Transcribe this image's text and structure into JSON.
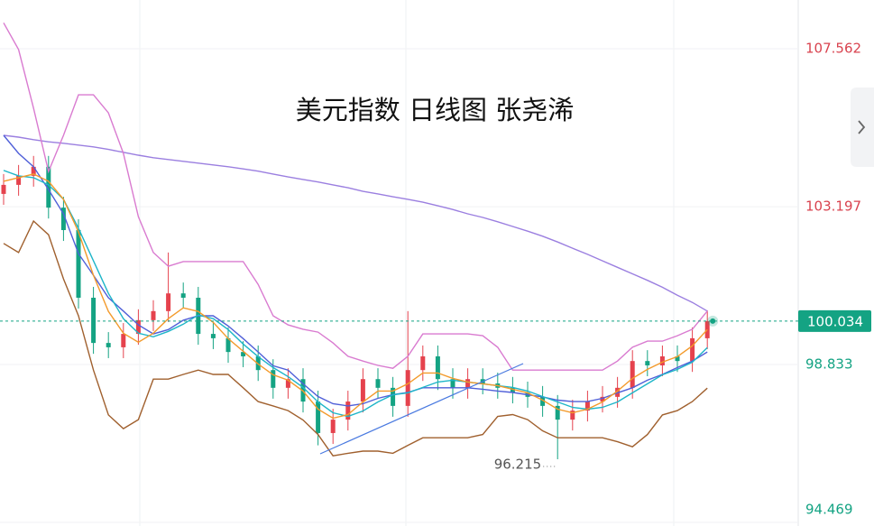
{
  "chart_data": {
    "type": "candlestick",
    "title": "美元指数 日线图 张尧浠",
    "open": [
      103.55,
      103.8,
      104.05,
      104.3,
      103.17,
      102.55,
      100.68,
      99.43,
      99.31,
      99.68,
      100.06,
      100.31,
      100.8,
      100.68,
      99.68,
      99.56,
      99.18,
      99.06,
      98.68,
      98.19,
      98.43,
      97.81,
      96.94,
      97.31,
      97.81,
      98.43,
      98.19,
      97.69,
      98.68,
      99.06,
      98.43,
      98.19,
      98.43,
      98.31,
      98.19,
      98.06,
      97.94,
      97.69,
      97.31,
      97.56,
      97.81,
      97.94,
      98.19,
      98.93,
      98.81,
      99.06,
      98.93,
      99.56
    ],
    "high": [
      104.1,
      104.35,
      104.6,
      104.6,
      103.47,
      102.85,
      100.98,
      99.73,
      99.98,
      100.36,
      100.61,
      101.93,
      101.1,
      100.98,
      99.98,
      99.86,
      99.48,
      99.36,
      98.98,
      98.73,
      98.73,
      98.11,
      97.61,
      98.11,
      98.73,
      98.73,
      98.49,
      100.31,
      99.36,
      99.36,
      98.73,
      98.73,
      98.73,
      98.61,
      98.49,
      98.36,
      98.24,
      97.99,
      97.86,
      98.11,
      98.24,
      98.49,
      99.23,
      99.23,
      99.36,
      99.36,
      99.86,
      100.33
    ],
    "low": [
      103.25,
      103.5,
      103.75,
      102.87,
      102.25,
      100.38,
      99.13,
      99.01,
      99.01,
      99.38,
      99.76,
      100.01,
      100.38,
      99.38,
      99.26,
      98.88,
      98.76,
      98.38,
      97.89,
      97.89,
      97.51,
      96.6,
      96.64,
      97.01,
      97.51,
      97.89,
      97.39,
      97.39,
      98.38,
      98.13,
      97.89,
      97.89,
      98.01,
      97.89,
      97.76,
      97.64,
      97.39,
      96.215,
      97.01,
      97.26,
      97.51,
      97.64,
      97.89,
      98.51,
      98.51,
      98.63,
      98.63,
      99.26
    ],
    "close": [
      103.8,
      104.05,
      104.3,
      103.17,
      102.55,
      100.68,
      99.43,
      99.31,
      99.68,
      100.06,
      100.31,
      100.8,
      100.68,
      99.68,
      99.56,
      99.18,
      99.06,
      98.68,
      98.19,
      98.43,
      97.81,
      96.94,
      97.31,
      97.81,
      98.43,
      98.19,
      97.69,
      98.68,
      99.06,
      98.43,
      98.19,
      98.43,
      98.31,
      98.19,
      98.06,
      97.94,
      97.69,
      97.31,
      97.56,
      97.81,
      97.94,
      98.19,
      98.93,
      98.81,
      99.06,
      98.93,
      99.56,
      100.034
    ],
    "up_color": "#e5424d",
    "down_color": "#14a383",
    "lines": [
      {
        "color": "#9b7fe0",
        "values": [
          105.17,
          105.12,
          105.05,
          104.99,
          104.95,
          104.9,
          104.85,
          104.78,
          104.7,
          104.62,
          104.55,
          104.5,
          104.45,
          104.4,
          104.35,
          104.3,
          104.24,
          104.18,
          104.1,
          104.02,
          103.95,
          103.88,
          103.8,
          103.72,
          103.62,
          103.55,
          103.47,
          103.4,
          103.32,
          103.22,
          103.12,
          103.0,
          102.9,
          102.78,
          102.65,
          102.52,
          102.38,
          102.22,
          102.05,
          101.88,
          101.7,
          101.52,
          101.34,
          101.16,
          100.97,
          100.75,
          100.55,
          100.31
        ]
      },
      {
        "color": "#d97bd0",
        "values": [
          108.28,
          107.54,
          105.92,
          104.17,
          105.17,
          106.29,
          106.29,
          105.79,
          104.67,
          102.92,
          101.93,
          101.55,
          101.68,
          101.68,
          101.68,
          101.68,
          101.68,
          101.05,
          100.18,
          99.93,
          99.81,
          99.73,
          99.43,
          99.06,
          98.93,
          98.81,
          98.73,
          99.06,
          99.68,
          99.68,
          99.68,
          99.68,
          99.63,
          99.31,
          98.68,
          98.68,
          98.68,
          98.68,
          98.68,
          98.68,
          98.68,
          98.93,
          99.31,
          99.48,
          99.48,
          99.63,
          99.81,
          100.31
        ]
      },
      {
        "color": "#a0602e",
        "values": [
          102.18,
          101.93,
          102.8,
          102.42,
          101.2,
          100.18,
          98.68,
          97.44,
          97.06,
          97.31,
          98.43,
          98.43,
          98.56,
          98.68,
          98.56,
          98.56,
          98.19,
          97.81,
          97.69,
          97.56,
          97.3,
          96.9,
          96.31,
          96.38,
          96.44,
          96.44,
          96.38,
          96.6,
          96.81,
          96.81,
          96.81,
          96.81,
          96.9,
          97.4,
          97.45,
          97.31,
          97.0,
          96.81,
          96.81,
          96.81,
          96.81,
          96.7,
          96.56,
          96.9,
          97.44,
          97.56,
          97.81,
          98.18
        ]
      },
      {
        "color": "#4f5fd8",
        "values": [
          105.17,
          104.67,
          104.3,
          103.67,
          103.0,
          101.9,
          101.3,
          100.68,
          100.31,
          99.93,
          99.68,
          99.8,
          100.06,
          100.18,
          100.18,
          99.9,
          99.55,
          99.18,
          98.8,
          98.68,
          98.3,
          97.95,
          97.75,
          97.69,
          97.75,
          97.9,
          98.0,
          98.06,
          98.19,
          98.19,
          98.19,
          98.19,
          98.15,
          98.1,
          98.06,
          98.0,
          97.94,
          97.85,
          97.81,
          97.81,
          97.9,
          98.05,
          98.19,
          98.4,
          98.56,
          98.75,
          98.93,
          99.18
        ]
      },
      {
        "color": "#1db5c8",
        "values": [
          104.2,
          104.05,
          104.0,
          103.8,
          103.4,
          102.6,
          101.7,
          100.8,
          100.1,
          99.7,
          99.6,
          99.75,
          99.95,
          100.2,
          100.1,
          99.8,
          99.4,
          99.05,
          98.75,
          98.5,
          98.2,
          97.8,
          97.5,
          97.4,
          97.55,
          97.8,
          98.0,
          98.05,
          98.2,
          98.35,
          98.4,
          98.35,
          98.3,
          98.25,
          98.2,
          98.1,
          97.95,
          97.8,
          97.65,
          97.6,
          97.65,
          97.8,
          98.05,
          98.3,
          98.55,
          98.7,
          98.9,
          99.3
        ]
      },
      {
        "color": "#f39a2b",
        "values": [
          103.9,
          104.0,
          104.1,
          103.9,
          103.4,
          102.5,
          101.3,
          100.3,
          99.7,
          99.45,
          99.7,
          100.1,
          100.4,
          100.3,
          100.0,
          99.55,
          99.2,
          98.85,
          98.55,
          98.4,
          98.1,
          97.6,
          97.35,
          97.45,
          97.8,
          98.1,
          98.1,
          98.3,
          98.6,
          98.6,
          98.45,
          98.35,
          98.3,
          98.25,
          98.15,
          98.05,
          97.85,
          97.6,
          97.5,
          97.6,
          97.8,
          98.1,
          98.45,
          98.7,
          98.9,
          99.05,
          99.35,
          99.8
        ]
      }
    ],
    "ylim": [
      94.37,
      108.91
    ],
    "yticks": [
      107.562,
      103.197,
      98.833,
      94.469
    ],
    "grid": true
  }
}
